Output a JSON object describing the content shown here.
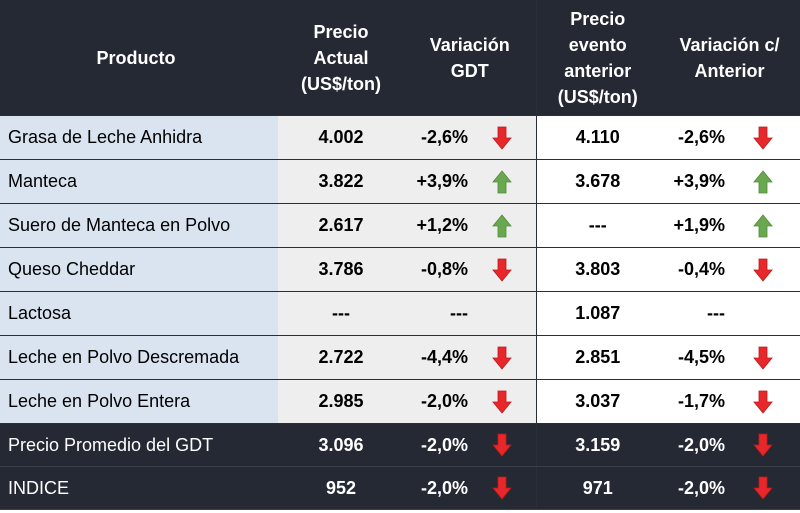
{
  "headers": {
    "producto": "Producto",
    "precio_actual": [
      "Precio",
      "Actual",
      "(US$/ton)"
    ],
    "variacion_gdt": [
      "Variación",
      "GDT"
    ],
    "precio_anterior": [
      "Precio",
      "evento",
      "anterior",
      "(US$/ton)"
    ],
    "variacion_anterior": [
      "Variación c/",
      "Anterior"
    ]
  },
  "rows": [
    {
      "producto": "Grasa de Leche Anhidra",
      "precio": "4.002",
      "var": "-2,6%",
      "var_dir": "down",
      "anterior": "4.110",
      "var_ant": "-2,6%",
      "var_ant_dir": "down"
    },
    {
      "producto": "Manteca",
      "precio": "3.822",
      "var": "+3,9%",
      "var_dir": "up",
      "anterior": "3.678",
      "var_ant": "+3,9%",
      "var_ant_dir": "up"
    },
    {
      "producto": "Suero de Manteca en Polvo",
      "precio": "2.617",
      "var": "+1,2%",
      "var_dir": "up",
      "anterior": "---",
      "var_ant": "+1,9%",
      "var_ant_dir": "up"
    },
    {
      "producto": "Queso Cheddar",
      "precio": "3.786",
      "var": "-0,8%",
      "var_dir": "down",
      "anterior": "3.803",
      "var_ant": "-0,4%",
      "var_ant_dir": "down"
    },
    {
      "producto": "Lactosa",
      "precio": "---",
      "var": "---",
      "var_dir": "none",
      "anterior": "1.087",
      "var_ant": "---",
      "var_ant_dir": "none"
    },
    {
      "producto": "Leche en Polvo Descremada",
      "precio": "2.722",
      "var": "-4,4%",
      "var_dir": "down",
      "anterior": "2.851",
      "var_ant": "-4,5%",
      "var_ant_dir": "down"
    },
    {
      "producto": "Leche en Polvo Entera",
      "precio": "2.985",
      "var": "-2,0%",
      "var_dir": "down",
      "anterior": "3.037",
      "var_ant": "-1,7%",
      "var_ant_dir": "down"
    }
  ],
  "summary_rows": [
    {
      "producto": "Precio Promedio del GDT",
      "precio": "3.096",
      "var": "-2,0%",
      "var_dir": "down",
      "anterior": "3.159",
      "var_ant": "-2,0%",
      "var_ant_dir": "down"
    },
    {
      "producto": "INDICE",
      "precio": "952",
      "var": "-2,0%",
      "var_dir": "down",
      "anterior": "971",
      "var_ant": "-2,0%",
      "var_ant_dir": "down"
    }
  ],
  "colors": {
    "header_bg": "#242933",
    "product_bg": "#dae3f0",
    "gray_bg": "#eeeeee",
    "down": "#e8272a",
    "up": "#6aa84f"
  }
}
